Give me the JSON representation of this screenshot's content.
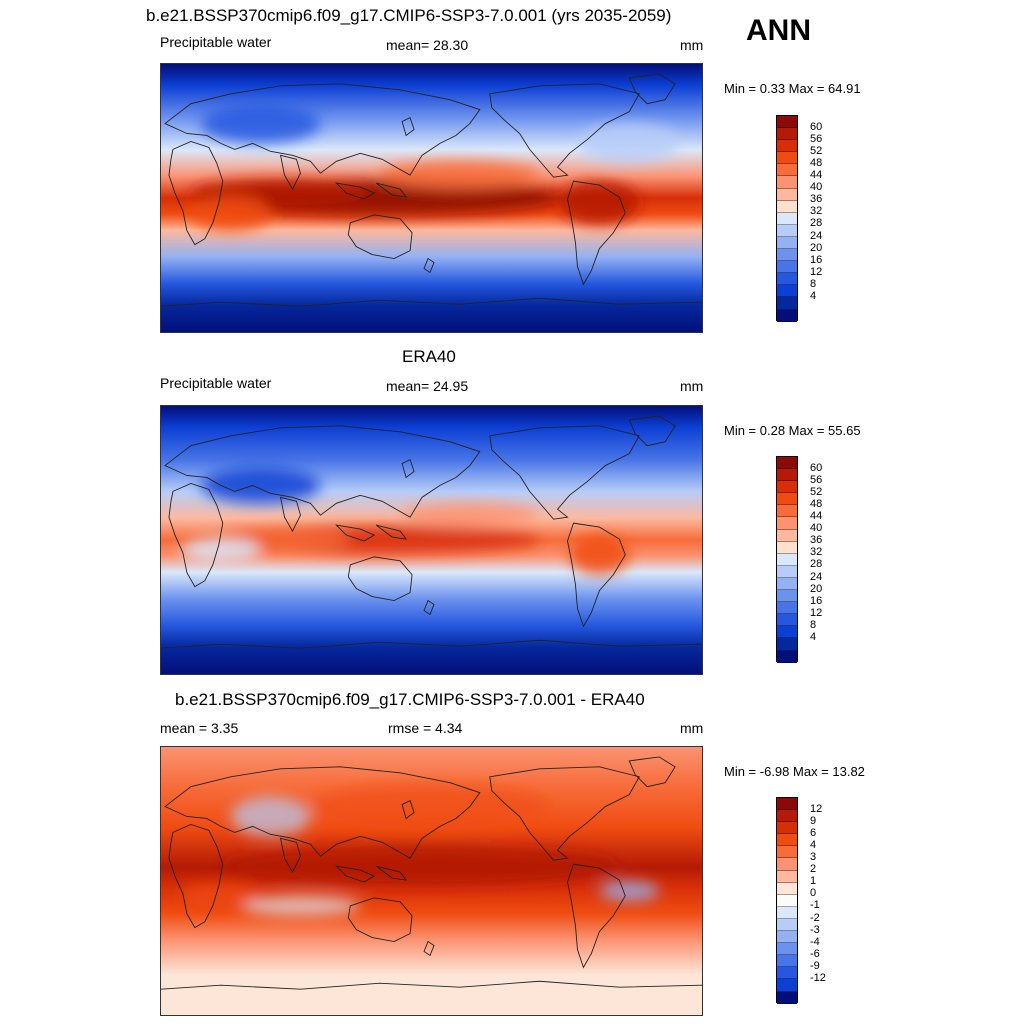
{
  "header": {
    "title": "b.e21.BSSP370cmip6.f09_g17.CMIP6-SSP3-7.0.001 (yrs 2035-2059)",
    "season": "ANN"
  },
  "panels": [
    {
      "id": "model",
      "title": "",
      "left_label": "Precipitable water",
      "center_label": "mean=  28.30",
      "right_label": "mm",
      "minmax": "Min =   0.33 Max =  64.91",
      "colorbar": {
        "labels": [
          "60",
          "56",
          "52",
          "48",
          "44",
          "40",
          "36",
          "32",
          "28",
          "24",
          "20",
          "16",
          "12",
          "8",
          "4"
        ],
        "colors": [
          "#8b0a05",
          "#b41a05",
          "#d72e08",
          "#f04c12",
          "#f76c3a",
          "#fb9372",
          "#fdb89e",
          "#fde0cd",
          "#dbe8fb",
          "#b7cdf8",
          "#93b1f3",
          "#6c92ee",
          "#4774e6",
          "#2557df",
          "#0c3fd4",
          "#05289d",
          "#020f7a"
        ]
      }
    },
    {
      "id": "obs",
      "title": "ERA40",
      "left_label": "Precipitable water",
      "center_label": "mean=  24.95",
      "right_label": "mm",
      "minmax": "Min =   0.28 Max =  55.65",
      "colorbar": {
        "labels": [
          "60",
          "56",
          "52",
          "48",
          "44",
          "40",
          "36",
          "32",
          "28",
          "24",
          "20",
          "16",
          "12",
          "8",
          "4"
        ],
        "colors": [
          "#8b0a05",
          "#b41a05",
          "#d72e08",
          "#f04c12",
          "#f76c3a",
          "#fb9372",
          "#fdb89e",
          "#fde0cd",
          "#dbe8fb",
          "#b7cdf8",
          "#93b1f3",
          "#6c92ee",
          "#4774e6",
          "#2557df",
          "#0c3fd4",
          "#05289d",
          "#020f7a"
        ]
      }
    },
    {
      "id": "diff",
      "title": "b.e21.BSSP370cmip6.f09_g17.CMIP6-SSP3-7.0.001 - ERA40",
      "left_label": "mean =   3.35",
      "center_label": "rmse =   4.34",
      "right_label": "mm",
      "minmax": "Min =  -6.98 Max =  13.82",
      "colorbar": {
        "labels": [
          "12",
          "9",
          "6",
          "4",
          "3",
          "2",
          "1",
          "0",
          "-1",
          "-2",
          "-3",
          "-4",
          "-6",
          "-9",
          "-12"
        ],
        "colors": [
          "#8b0a05",
          "#b41a05",
          "#d72e08",
          "#f04c12",
          "#f76c3a",
          "#fb9372",
          "#fdb89e",
          "#fde6d8",
          "#fbfbfb",
          "#dbe8fb",
          "#b7cdf8",
          "#93b1f3",
          "#6c92ee",
          "#4774e6",
          "#2557df",
          "#0c3fd4",
          "#020f7a"
        ]
      }
    }
  ]
}
